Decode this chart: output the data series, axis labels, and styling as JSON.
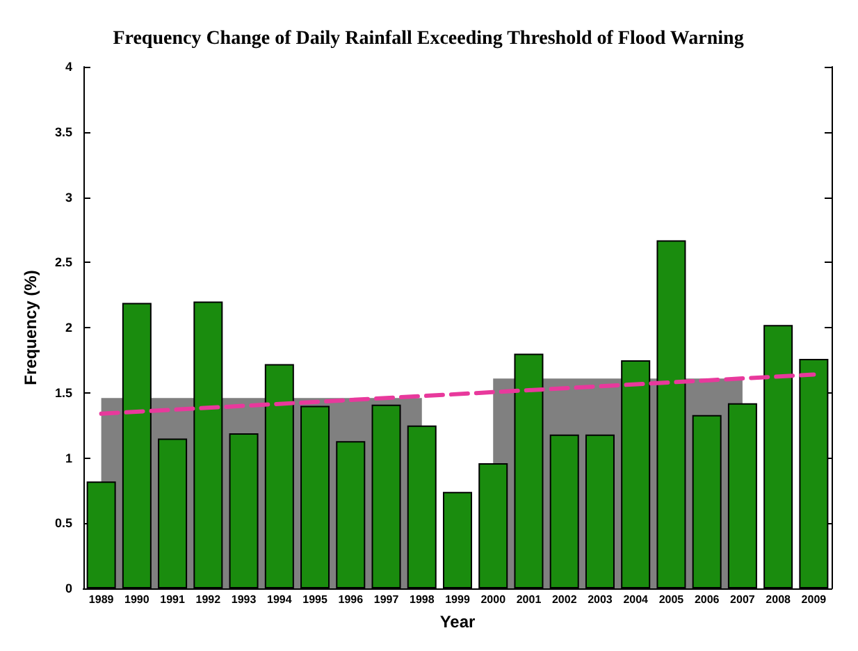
{
  "chart_data": {
    "type": "bar",
    "title": "Frequency Change of Daily Rainfall Exceeding Threshold of Flood Warning",
    "xlabel": "Year",
    "ylabel": "Frequency (%)",
    "categories": [
      "1989",
      "1990",
      "1991",
      "1992",
      "1993",
      "1994",
      "1995",
      "1996",
      "1997",
      "1998",
      "1999",
      "2000",
      "2001",
      "2002",
      "2003",
      "2004",
      "2005",
      "2006",
      "2007",
      "2008",
      "2009"
    ],
    "series": [
      {
        "type": "area",
        "color": "#808080",
        "values": [
          1.46,
          null,
          1.46,
          null,
          1.46,
          null,
          1.46,
          1.46,
          1.46,
          1.46,
          null,
          null,
          null,
          null,
          null,
          null,
          null,
          null,
          null,
          null,
          null
        ]
      },
      {
        "type": "area",
        "color": "#808080",
        "values": [
          null,
          null,
          null,
          null,
          null,
          null,
          null,
          null,
          null,
          null,
          null,
          1.61,
          null,
          1.61,
          1.61,
          null,
          null,
          1.61,
          1.61,
          null,
          null
        ]
      },
      {
        "color": "#1a8c0e",
        "values": [
          0.82,
          2.19,
          1.15,
          2.2,
          1.19,
          1.72,
          1.4,
          1.13,
          1.41,
          1.25,
          0.74,
          0.96,
          1.8,
          1.18,
          1.18,
          1.75,
          2.67,
          1.33,
          1.42,
          2.02,
          1.76
        ]
      },
      {
        "type": "line",
        "color": "#e8399c",
        "line_style": "dashed",
        "marker": "none",
        "values": [
          1.34,
          null,
          null,
          null,
          null,
          null,
          null,
          null,
          null,
          null,
          null,
          null,
          null,
          null,
          null,
          null,
          null,
          null,
          null,
          null,
          1.64
        ]
      }
    ],
    "ylim": [
      0,
      4
    ],
    "yticks": [
      0,
      0.5,
      1,
      1.5,
      2,
      2.5,
      3,
      3.5,
      4
    ],
    "grid": false
  }
}
